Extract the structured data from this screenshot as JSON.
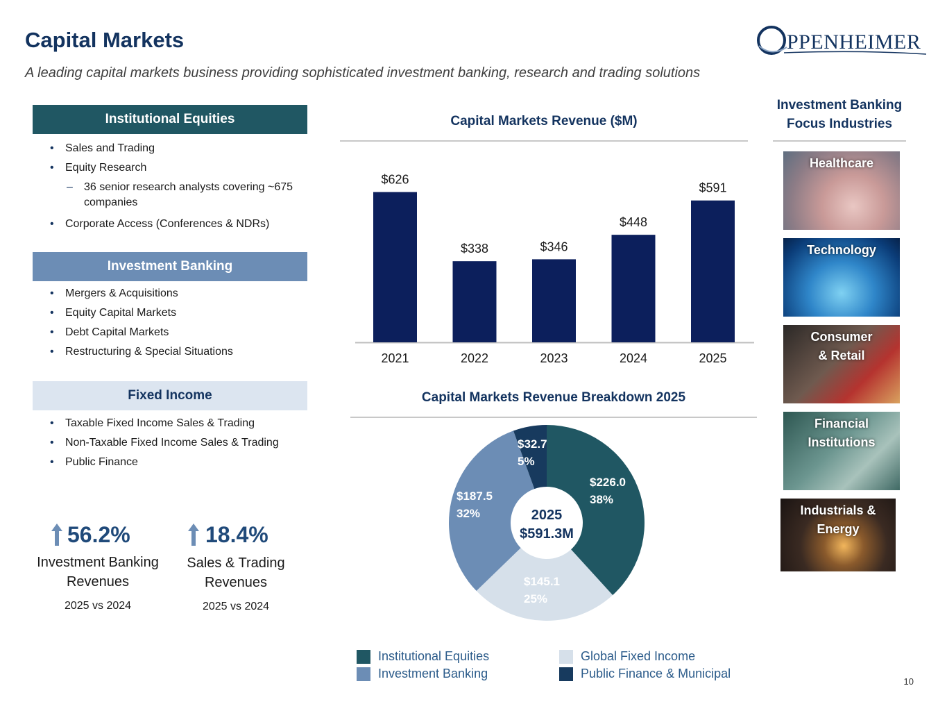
{
  "header": {
    "title": "Capital Markets",
    "subtitle": "A leading capital markets business providing sophisticated investment banking, research and trading solutions",
    "logo_text": "PPENHEIMER",
    "logo_letter": "O"
  },
  "sections": {
    "institutional_equities": {
      "title": "Institutional Equities",
      "items": [
        "Sales and Trading",
        "Equity Research",
        "36 senior research analysts covering ~675 companies",
        "Corporate Access (Conferences & NDRs)"
      ]
    },
    "investment_banking": {
      "title": "Investment Banking",
      "items": [
        "Mergers & Acquisitions",
        "Equity Capital Markets",
        "Debt Capital Markets",
        "Restructuring & Special Situations"
      ]
    },
    "fixed_income": {
      "title": "Fixed Income",
      "items": [
        "Taxable Fixed Income Sales & Trading",
        "Non-Taxable Fixed Income Sales & Trading",
        "Public Finance"
      ]
    }
  },
  "stats": [
    {
      "value": "56.2%",
      "label_line1": "Investment Banking",
      "label_line2": "Revenues",
      "sub": "2025 vs 2024"
    },
    {
      "value": "18.4%",
      "label_line1": "Sales & Trading",
      "label_line2": "Revenues",
      "sub": "2025 vs 2024"
    }
  ],
  "focus": {
    "title_line1": "Investment Banking",
    "title_line2": "Focus Industries",
    "tiles": [
      {
        "line1": "Healthcare",
        "line2": ""
      },
      {
        "line1": "Technology",
        "line2": ""
      },
      {
        "line1": "Consumer",
        "line2": "& Retail"
      },
      {
        "line1": "Financial",
        "line2": "Institutions"
      },
      {
        "line1": "Industrials &",
        "line2": "Energy"
      }
    ]
  },
  "colors": {
    "navy": "#0c1f5c",
    "teal": "#205763",
    "steel": "#6c8db5",
    "light": "#d6e0ea",
    "dark_blue": "#173a5e"
  },
  "page_number": "10",
  "chart_data": [
    {
      "type": "bar",
      "title": "Capital Markets Revenue ($M)",
      "categories": [
        "2021",
        "2022",
        "2023",
        "2024",
        "2025"
      ],
      "values": [
        626,
        338,
        346,
        448,
        591
      ],
      "value_labels": [
        "$626",
        "$338",
        "$346",
        "$448",
        "$591"
      ],
      "ylim": [
        0,
        700
      ],
      "grid": false,
      "color": "#0c1f5c"
    },
    {
      "type": "pie",
      "donut": true,
      "title": "Capital Markets Revenue Breakdown 2025",
      "center_label_line1": "2025",
      "center_label_line2": "$591.3M",
      "slices": [
        {
          "name": "Institutional Equities",
          "value": 226.0,
          "value_label": "$226.0",
          "pct_label": "38%",
          "color": "#205763",
          "text_color": "#ffffff"
        },
        {
          "name": "Global Fixed Income",
          "value": 145.1,
          "value_label": "$145.1",
          "pct_label": "25%",
          "color": "#d6e0ea",
          "text_color": "#ffffff"
        },
        {
          "name": "Investment Banking",
          "value": 187.5,
          "value_label": "$187.5",
          "pct_label": "32%",
          "color": "#6c8db5",
          "text_color": "#ffffff"
        },
        {
          "name": "Public Finance & Municipal",
          "value": 32.7,
          "value_label": "$32.7",
          "pct_label": "5%",
          "color": "#173a5e",
          "text_color": "#ffffff"
        }
      ],
      "legend": [
        "Institutional Equities",
        "Investment Banking",
        "Global Fixed Income",
        "Public Finance & Municipal"
      ],
      "legend_position": "bottom"
    }
  ]
}
